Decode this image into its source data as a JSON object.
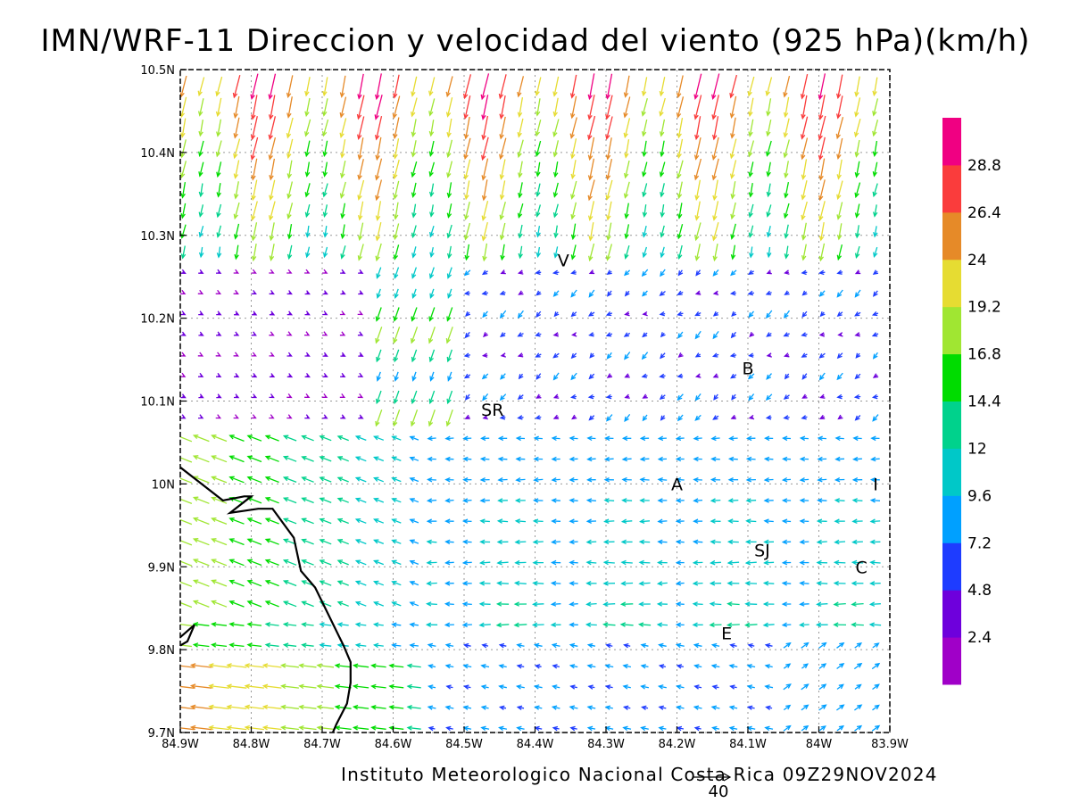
{
  "title": "IMN/WRF-11 Direccion y velocidad del viento (925 hPa)(km/h)",
  "credit": "Instituto Meteorologico Nacional Costa Rica 09Z29NOV2024",
  "reference_vector": {
    "label": "40",
    "speed_kmh": 40
  },
  "map": {
    "lon_range": [
      -84.9,
      -83.9
    ],
    "lat_range": [
      9.7,
      10.5
    ],
    "x_ticks": [
      {
        "lon": -84.9,
        "label": "84.9W"
      },
      {
        "lon": -84.8,
        "label": "84.8W"
      },
      {
        "lon": -84.7,
        "label": "84.7W"
      },
      {
        "lon": -84.6,
        "label": "84.6W"
      },
      {
        "lon": -84.5,
        "label": "84.5W"
      },
      {
        "lon": -84.4,
        "label": "84.4W"
      },
      {
        "lon": -84.3,
        "label": "84.3W"
      },
      {
        "lon": -84.2,
        "label": "84.2W"
      },
      {
        "lon": -84.1,
        "label": "84.1W"
      },
      {
        "lon": -84.0,
        "label": "84W"
      },
      {
        "lon": -83.9,
        "label": "83.9W"
      }
    ],
    "y_ticks": [
      {
        "lat": 10.5,
        "label": "10.5N"
      },
      {
        "lat": 10.4,
        "label": "10.4N"
      },
      {
        "lat": 10.3,
        "label": "10.3N"
      },
      {
        "lat": 10.2,
        "label": "10.2N"
      },
      {
        "lat": 10.1,
        "label": "10.1N"
      },
      {
        "lat": 10.0,
        "label": "10N"
      },
      {
        "lat": 9.9,
        "label": "9.9N"
      },
      {
        "lat": 9.8,
        "label": "9.8N"
      },
      {
        "lat": 9.7,
        "label": "9.7N"
      }
    ],
    "grid": true,
    "places": [
      {
        "name": "V",
        "lon": -84.36,
        "lat": 10.27
      },
      {
        "name": "B",
        "lon": -84.1,
        "lat": 10.14
      },
      {
        "name": "SR",
        "lon": -84.46,
        "lat": 10.09
      },
      {
        "name": "A",
        "lon": -84.2,
        "lat": 10.0
      },
      {
        "name": "I",
        "lon": -83.92,
        "lat": 10.0
      },
      {
        "name": "SJ",
        "lon": -84.08,
        "lat": 9.92
      },
      {
        "name": "C",
        "lon": -83.94,
        "lat": 9.9
      },
      {
        "name": "E",
        "lon": -84.13,
        "lat": 9.82
      }
    ],
    "coastline": [
      [
        -84.9,
        10.02
      ],
      [
        -84.87,
        10.0
      ],
      [
        -84.84,
        9.98
      ],
      [
        -84.81,
        9.985
      ],
      [
        -84.8,
        9.985
      ],
      [
        -84.83,
        9.965
      ],
      [
        -84.79,
        9.97
      ],
      [
        -84.77,
        9.97
      ],
      [
        -84.74,
        9.935
      ],
      [
        -84.73,
        9.895
      ],
      [
        -84.71,
        9.875
      ],
      [
        -84.69,
        9.84
      ],
      [
        -84.67,
        9.805
      ],
      [
        -84.66,
        9.785
      ],
      [
        -84.66,
        9.76
      ],
      [
        -84.665,
        9.735
      ],
      [
        -84.68,
        9.71
      ],
      [
        -84.685,
        9.7
      ]
    ],
    "coastline_fragment": [
      [
        -84.9,
        9.815
      ],
      [
        -84.88,
        9.83
      ],
      [
        -84.89,
        9.81
      ],
      [
        -84.9,
        9.805
      ]
    ]
  },
  "colorbar": {
    "colors": [
      "#a000c8",
      "#6e00dc",
      "#1e3cff",
      "#00a0ff",
      "#00c8c8",
      "#00d28c",
      "#00dc00",
      "#a0e632",
      "#e6dc32",
      "#e68a28",
      "#fa3c3c",
      "#f00082"
    ],
    "labels": [
      "2.4",
      "4.8",
      "7.2",
      "9.6",
      "12",
      "14.4",
      "16.8",
      "19.2",
      "24",
      "26.4",
      "28.8"
    ]
  },
  "wind_field": {
    "units": "km/h",
    "grid_spacing_deg": 0.025,
    "regimes": [
      {
        "region": "north (10.3N-10.5N)",
        "direction": "from the north-northeast",
        "speed_range_kmh": [
          14,
          30
        ]
      },
      {
        "region": "central valley (9.9N-10.2N)",
        "direction": "from the east and variable",
        "speed_range_kmh": [
          2,
          12
        ]
      },
      {
        "region": "southwest near coast",
        "direction": "from the east-southeast",
        "speed_range_kmh": [
          10,
          28
        ]
      },
      {
        "region": "southeast (9.7N-9.9N, 84.0W-83.9W)",
        "direction": "from the southwest",
        "speed_range_kmh": [
          7,
          14
        ]
      }
    ]
  }
}
